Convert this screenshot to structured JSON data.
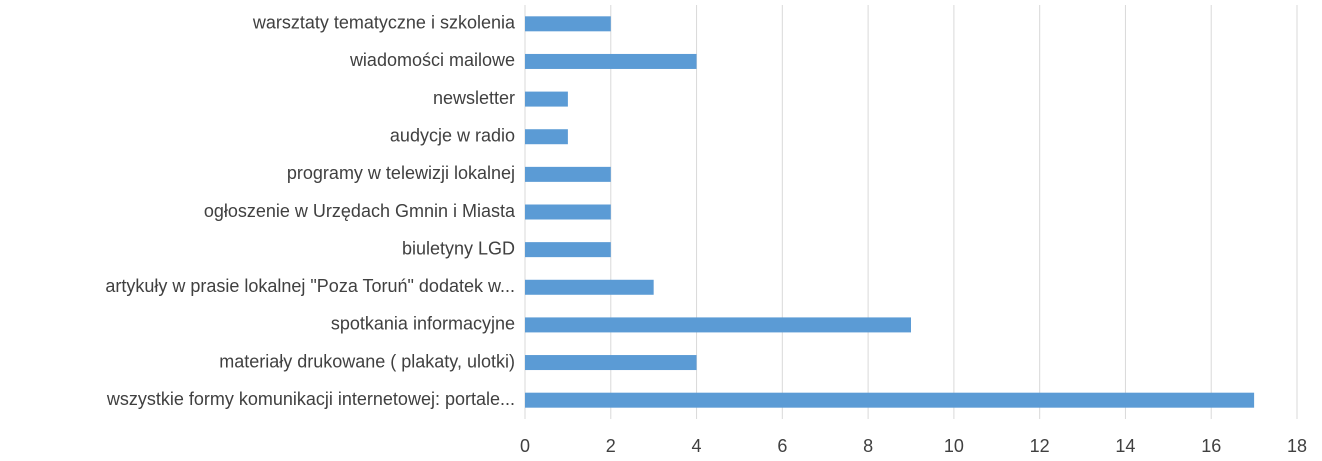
{
  "chart_data": {
    "type": "hbar",
    "categories": [
      "warsztaty tematyczne i szkolenia",
      "wiadomości mailowe",
      "newsletter",
      "audycje w radio",
      "programy w telewizji lokalnej",
      "ogłoszenie w Urzędach Gmnin i Miasta",
      "biuletyny LGD",
      "artykuły w prasie lokalnej \"Poza Toruń\" dodatek w...",
      "spotkania informacyjne",
      "materiały drukowane ( plakaty, ulotki)",
      "wszystkie formy komunikacji internetowej: portale..."
    ],
    "values": [
      2,
      4,
      1,
      1,
      2,
      2,
      2,
      3,
      9,
      4,
      17
    ],
    "color": "#5b9bd5",
    "xlim": [
      0,
      18
    ],
    "xticks": [
      0,
      2,
      4,
      6,
      8,
      10,
      12,
      14,
      16,
      18
    ],
    "grid": true
  }
}
